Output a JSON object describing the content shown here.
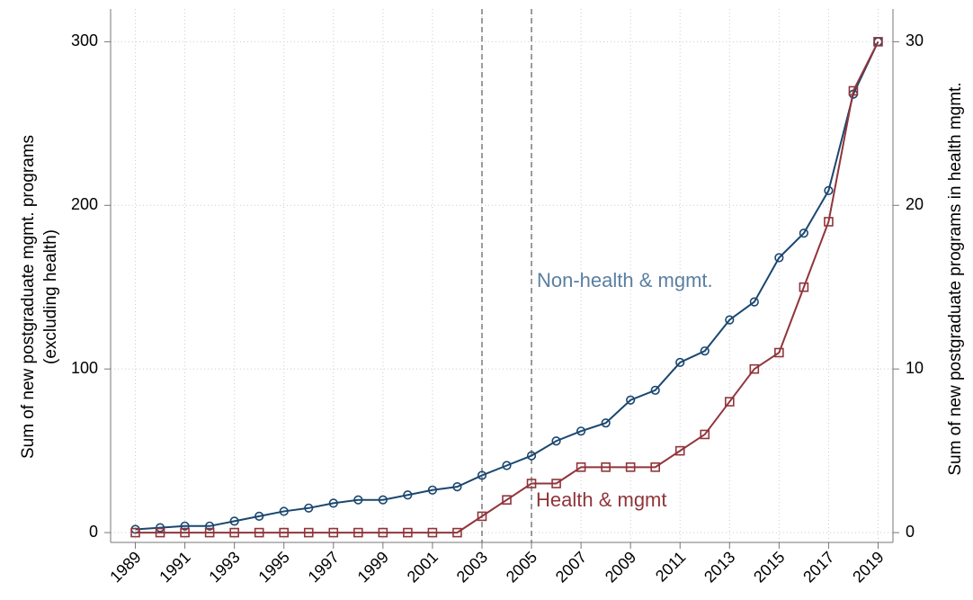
{
  "chart_data": {
    "type": "line",
    "y_label": [
      "Sum of new postgraduate mgmt. programs",
      "(excluding health)"
    ],
    "y2_label": "Sum of new postgraduate programs in health mgmt.",
    "x": [
      1989,
      1990,
      1991,
      1992,
      1993,
      1994,
      1995,
      1996,
      1997,
      1998,
      1999,
      2000,
      2001,
      2002,
      2003,
      2004,
      2005,
      2006,
      2007,
      2008,
      2009,
      2010,
      2011,
      2012,
      2013,
      2014,
      2015,
      2016,
      2017,
      2018,
      2019
    ],
    "series": [
      {
        "name": "Non-health & mgmt.",
        "color": "#1a476f",
        "label_color": "#5b7fa0",
        "marker": "circle",
        "values": [
          2,
          3,
          4,
          4,
          7,
          10,
          13,
          15,
          18,
          20,
          20,
          23,
          26,
          28,
          35,
          41,
          47,
          56,
          62,
          67,
          81,
          87,
          104,
          111,
          130,
          141,
          168,
          183,
          209,
          268,
          300
        ]
      },
      {
        "name": "Health & mgmt",
        "color": "#90353b",
        "label_color": "#90353b",
        "marker": "square",
        "axis": "y2",
        "values": [
          0,
          0,
          0,
          0,
          0,
          0,
          0,
          0,
          0,
          0,
          0,
          0,
          0,
          0,
          1,
          2,
          3,
          3,
          4,
          4,
          4,
          4,
          5,
          6,
          8,
          10,
          11,
          15,
          19,
          27,
          30
        ]
      }
    ],
    "xlim": [
      1988,
      2019.6
    ],
    "xticks": [
      1989,
      1991,
      1993,
      1995,
      1997,
      1999,
      2001,
      2003,
      2005,
      2007,
      2009,
      2011,
      2013,
      2015,
      2017,
      2019
    ],
    "ylim": [
      -6,
      320
    ],
    "yticks": [
      0,
      100,
      200,
      300
    ],
    "y2lim": [
      -0.6,
      32
    ],
    "y2ticks": [
      0,
      10,
      20,
      30
    ],
    "vlines": [
      2003,
      2005
    ],
    "grid": true
  }
}
